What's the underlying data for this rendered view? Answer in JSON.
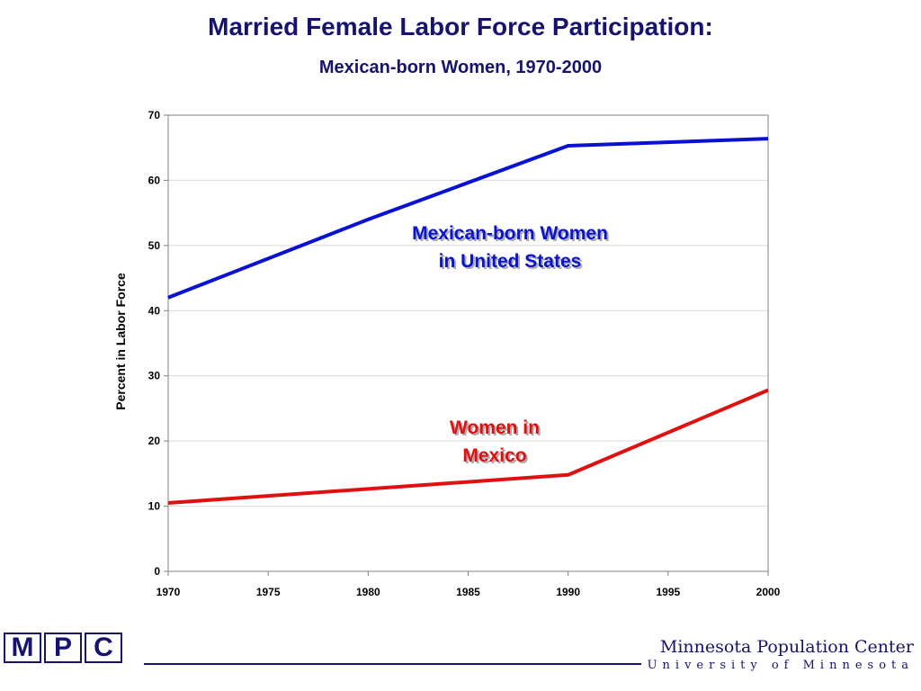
{
  "chart_data": {
    "type": "line",
    "title": "Married Female Labor Force Participation:",
    "subtitle": "Mexican-born Women, 1970-2000",
    "xlabel": "",
    "ylabel": "Percent in Labor Force",
    "xlim": [
      1970,
      2000
    ],
    "ylim": [
      0,
      70
    ],
    "x_ticks": [
      "1970",
      "1975",
      "1980",
      "1985",
      "1990",
      "1995",
      "2000"
    ],
    "y_ticks": [
      "0",
      "10",
      "20",
      "30",
      "40",
      "50",
      "60",
      "70"
    ],
    "grid": true,
    "legend": "none",
    "series": [
      {
        "name": "Mexican-born Women in United States",
        "label_lines": [
          "Mexican-born Women",
          "in United States"
        ],
        "color": "#0a12d2",
        "points": [
          [
            1970,
            42
          ],
          [
            1980,
            54
          ],
          [
            1990,
            65.3
          ],
          [
            2000,
            66.4
          ]
        ]
      },
      {
        "name": "Women in Mexico",
        "label_lines": [
          "Women in",
          "Mexico"
        ],
        "color": "#e01010",
        "points": [
          [
            1970,
            10.5
          ],
          [
            1990,
            14.8
          ],
          [
            2000,
            27.8
          ]
        ]
      }
    ]
  },
  "footer": {
    "logo_letters": [
      "M",
      "P",
      "C"
    ],
    "org_name": "Minnesota Population Center",
    "org_sub": "University of Minnesota",
    "brand_color": "#16136e"
  }
}
